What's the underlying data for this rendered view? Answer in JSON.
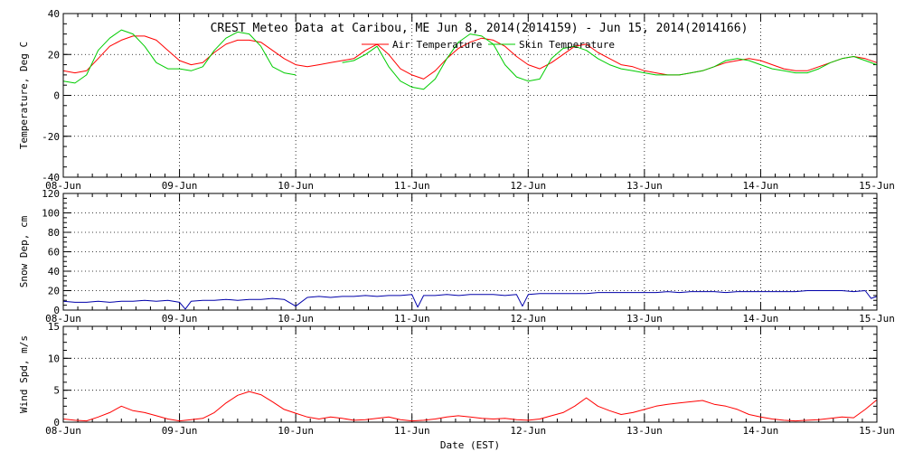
{
  "title": "CREST Meteo Data at Caribou, ME   Jun  8, 2014(2014159) - Jun 15, 2014(2014166)",
  "xlabel": "Date (EST)",
  "colors": {
    "air_temperature": "#ff0000",
    "skin_temperature": "#00cc00",
    "snow_depth": "#0000aa",
    "wind_speed": "#ff0000",
    "axes": "#000000"
  },
  "chart_data": [
    {
      "type": "line",
      "xlabel": "Date (EST)",
      "ylabel": "Temperature, Deg C",
      "x_ticks": [
        "08-Jun",
        "09-Jun",
        "10-Jun",
        "11-Jun",
        "12-Jun",
        "13-Jun",
        "14-Jun",
        "15-Jun"
      ],
      "xlim": [
        0,
        7
      ],
      "ylim": [
        -40,
        40
      ],
      "y_ticks": [
        -40,
        -20,
        0,
        20,
        40
      ],
      "grid": true,
      "legend_placement": "top-center",
      "series": [
        {
          "name": "Air Temperature",
          "color": "#ff0000",
          "x": [
            0.0,
            0.1,
            0.2,
            0.3,
            0.4,
            0.5,
            0.6,
            0.7,
            0.8,
            0.9,
            1.0,
            1.1,
            1.2,
            1.3,
            1.4,
            1.5,
            1.6,
            1.7,
            1.8,
            1.9,
            2.0,
            2.1,
            2.2,
            2.3,
            2.4,
            2.5,
            2.6,
            2.7,
            2.8,
            2.9,
            3.0,
            3.1,
            3.2,
            3.3,
            3.4,
            3.5,
            3.6,
            3.7,
            3.8,
            3.9,
            4.0,
            4.1,
            4.2,
            4.3,
            4.4,
            4.5,
            4.6,
            4.7,
            4.8,
            4.9,
            5.0,
            5.1,
            5.2,
            5.3,
            5.4,
            5.5,
            5.6,
            5.7,
            5.8,
            5.9,
            6.0,
            6.1,
            6.2,
            6.3,
            6.4,
            6.5,
            6.6,
            6.7,
            6.8,
            6.9,
            7.0
          ],
          "y": [
            12,
            11,
            12,
            18,
            24,
            27,
            29,
            29,
            27,
            22,
            17,
            15,
            16,
            21,
            25,
            27,
            27,
            26,
            22,
            18,
            15,
            14,
            15,
            16,
            17,
            18,
            22,
            25,
            20,
            13,
            10,
            8,
            12,
            18,
            23,
            26,
            28,
            27,
            24,
            19,
            15,
            13,
            16,
            20,
            24,
            25,
            21,
            18,
            15,
            14,
            12,
            11,
            10,
            10,
            11,
            12,
            14,
            16,
            17,
            18,
            17,
            15,
            13,
            12,
            12,
            14,
            16,
            18,
            19,
            18,
            16
          ]
        },
        {
          "name": "Skin Temperature",
          "color": "#00cc00",
          "x": [
            0.0,
            0.1,
            0.2,
            0.3,
            0.4,
            0.5,
            0.6,
            0.7,
            0.8,
            0.9,
            1.0,
            1.1,
            1.2,
            1.3,
            1.4,
            1.5,
            1.6,
            1.7,
            1.8,
            1.9,
            2.0,
            2.1,
            2.2,
            2.3,
            2.4,
            2.5,
            2.6,
            2.7,
            2.8,
            2.9,
            3.0,
            3.1,
            3.2,
            3.3,
            3.4,
            3.5,
            3.6,
            3.7,
            3.8,
            3.9,
            4.0,
            4.1,
            4.2,
            4.3,
            4.4,
            4.5,
            4.6,
            4.7,
            4.8,
            4.9,
            5.0,
            5.1,
            5.2,
            5.3,
            5.4,
            5.5,
            5.6,
            5.7,
            5.8,
            5.9,
            6.0,
            6.1,
            6.2,
            6.3,
            6.4,
            6.5,
            6.6,
            6.7,
            6.8,
            6.9,
            7.0
          ],
          "y": [
            7,
            6,
            10,
            22,
            28,
            32,
            30,
            24,
            16,
            13,
            13,
            12,
            14,
            22,
            28,
            31,
            30,
            24,
            14,
            11,
            10,
            null,
            null,
            null,
            16,
            17,
            20,
            24,
            14,
            7,
            4,
            3,
            8,
            18,
            26,
            30,
            29,
            25,
            15,
            9,
            7,
            8,
            18,
            23,
            24,
            22,
            18,
            15,
            13,
            12,
            11,
            10,
            10,
            10,
            11,
            12,
            14,
            17,
            18,
            17,
            15,
            13,
            12,
            11,
            11,
            13,
            16,
            18,
            19,
            17,
            15
          ]
        }
      ]
    },
    {
      "type": "line",
      "xlabel": "Date (EST)",
      "ylabel": "Snow Dep, cm",
      "x_ticks": [
        "08-Jun",
        "09-Jun",
        "10-Jun",
        "11-Jun",
        "12-Jun",
        "13-Jun",
        "14-Jun",
        "15-Jun"
      ],
      "xlim": [
        0,
        7
      ],
      "ylim": [
        0,
        120
      ],
      "y_ticks": [
        0,
        20,
        40,
        60,
        80,
        100,
        120
      ],
      "grid": true,
      "series": [
        {
          "color": "#0000aa",
          "x": [
            0.0,
            0.1,
            0.2,
            0.3,
            0.4,
            0.5,
            0.6,
            0.7,
            0.8,
            0.9,
            1.0,
            1.05,
            1.1,
            1.2,
            1.3,
            1.4,
            1.5,
            1.6,
            1.7,
            1.8,
            1.9,
            2.0,
            2.1,
            2.2,
            2.3,
            2.4,
            2.5,
            2.6,
            2.7,
            2.8,
            2.9,
            3.0,
            3.05,
            3.1,
            3.2,
            3.3,
            3.4,
            3.5,
            3.6,
            3.7,
            3.8,
            3.9,
            3.95,
            4.0,
            4.1,
            4.2,
            4.3,
            4.4,
            4.5,
            4.6,
            4.7,
            4.8,
            4.9,
            5.0,
            5.1,
            5.2,
            5.3,
            5.4,
            5.5,
            5.6,
            5.7,
            5.8,
            5.9,
            6.0,
            6.1,
            6.2,
            6.3,
            6.4,
            6.5,
            6.6,
            6.7,
            6.8,
            6.9,
            6.95,
            7.0
          ],
          "y": [
            9,
            8,
            8,
            9,
            8,
            9,
            9,
            10,
            9,
            10,
            8,
            1,
            9,
            10,
            10,
            11,
            10,
            11,
            11,
            12,
            11,
            4,
            13,
            14,
            13,
            14,
            14,
            15,
            14,
            15,
            15,
            16,
            3,
            15,
            15,
            16,
            15,
            16,
            16,
            16,
            15,
            16,
            4,
            16,
            17,
            17,
            17,
            17,
            17,
            18,
            18,
            18,
            18,
            18,
            18,
            19,
            18,
            19,
            19,
            19,
            18,
            19,
            19,
            19,
            19,
            19,
            19,
            20,
            20,
            20,
            20,
            19,
            20,
            12,
            14
          ]
        }
      ]
    },
    {
      "type": "line",
      "xlabel": "Date (EST)",
      "ylabel": "Wind Spd, m/s",
      "x_ticks": [
        "08-Jun",
        "09-Jun",
        "10-Jun",
        "11-Jun",
        "12-Jun",
        "13-Jun",
        "14-Jun",
        "15-Jun"
      ],
      "xlim": [
        0,
        7
      ],
      "ylim": [
        0,
        15
      ],
      "y_ticks": [
        0,
        5,
        10,
        15
      ],
      "grid": true,
      "series": [
        {
          "color": "#ff0000",
          "x": [
            0.0,
            0.1,
            0.2,
            0.3,
            0.4,
            0.5,
            0.6,
            0.7,
            0.8,
            0.9,
            1.0,
            1.1,
            1.2,
            1.3,
            1.4,
            1.5,
            1.6,
            1.7,
            1.8,
            1.9,
            2.0,
            2.1,
            2.2,
            2.3,
            2.4,
            2.5,
            2.6,
            2.7,
            2.8,
            2.9,
            3.0,
            3.1,
            3.2,
            3.3,
            3.4,
            3.5,
            3.6,
            3.7,
            3.8,
            3.9,
            4.0,
            4.1,
            4.2,
            4.3,
            4.4,
            4.5,
            4.6,
            4.7,
            4.8,
            4.9,
            5.0,
            5.1,
            5.2,
            5.3,
            5.4,
            5.5,
            5.6,
            5.7,
            5.8,
            5.9,
            6.0,
            6.1,
            6.2,
            6.3,
            6.4,
            6.5,
            6.6,
            6.7,
            6.8,
            6.9,
            7.0
          ],
          "y": [
            0.5,
            0.3,
            0.2,
            0.8,
            1.5,
            2.5,
            1.8,
            1.5,
            1.0,
            0.5,
            0.2,
            0.4,
            0.6,
            1.5,
            3.0,
            4.2,
            4.8,
            4.3,
            3.2,
            2.0,
            1.4,
            0.8,
            0.5,
            0.8,
            0.6,
            0.3,
            0.4,
            0.6,
            0.8,
            0.4,
            0.2,
            0.3,
            0.5,
            0.8,
            1.0,
            0.8,
            0.6,
            0.5,
            0.6,
            0.4,
            0.3,
            0.5,
            1.0,
            1.5,
            2.5,
            3.8,
            2.5,
            1.8,
            1.2,
            1.5,
            2.0,
            2.5,
            2.8,
            3.0,
            3.2,
            3.4,
            2.8,
            2.5,
            2.0,
            1.2,
            0.8,
            0.5,
            0.3,
            0.2,
            0.3,
            0.4,
            0.6,
            0.8,
            0.7,
            2.0,
            3.5
          ]
        }
      ]
    }
  ]
}
